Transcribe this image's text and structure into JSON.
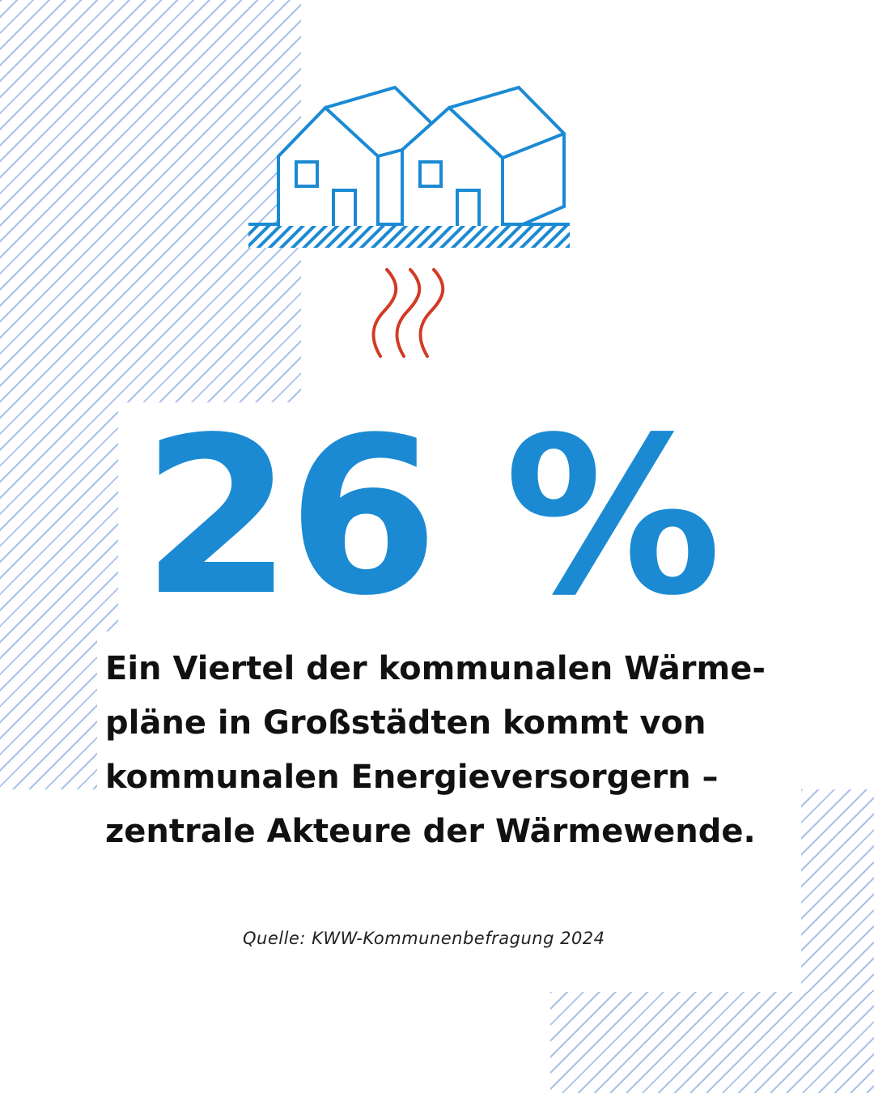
{
  "icons": {
    "houses": "houses-icon",
    "heat": "heat-waves-icon"
  },
  "colors": {
    "accent_blue": "#1b8ad3",
    "heat_red": "#d13b25",
    "hatch_blue": "#a9c2e6",
    "text": "#111111"
  },
  "statistic": {
    "value": "26 %"
  },
  "headline": {
    "lines": [
      "Ein Viertel der kommunalen Wärme-",
      "pläne in Großstädten kommt von",
      "kommunalen Energieversorgern –",
      "zentrale Akteure der Wärmewende."
    ]
  },
  "source": {
    "text": "Quelle: KWW-Kommunenbefragung 2024"
  }
}
